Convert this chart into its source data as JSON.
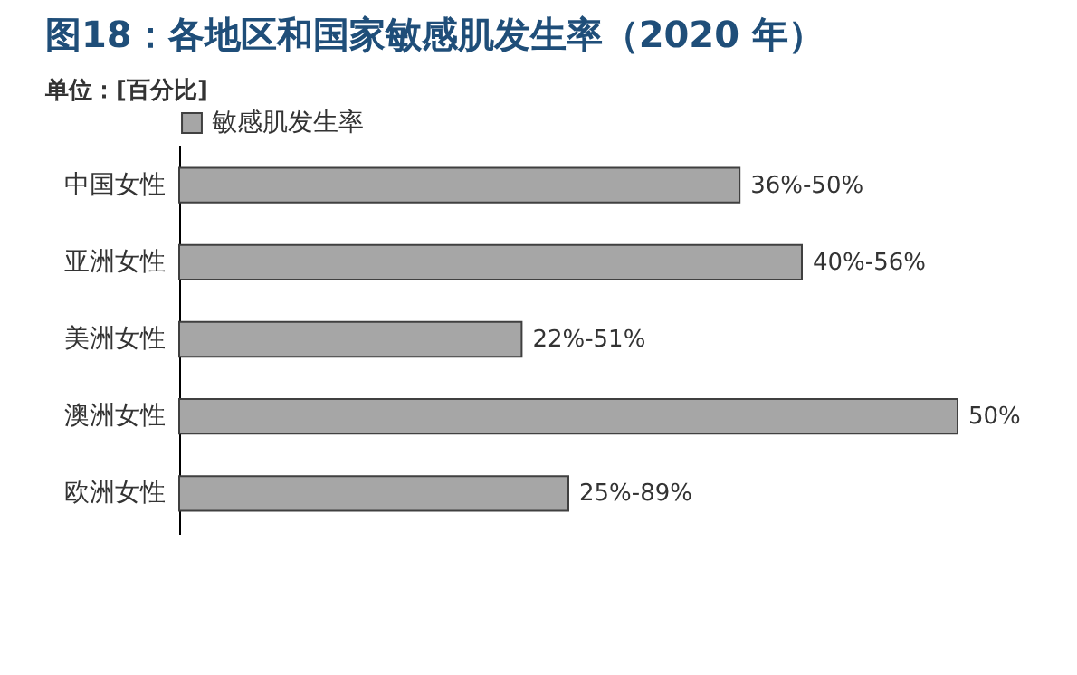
{
  "chart_data": {
    "type": "bar",
    "orientation": "horizontal",
    "title": "图18：各地区和国家敏感肌发生率（2020 年）",
    "annotations": [
      "单位：[百分比]"
    ],
    "categories": [
      "中国女性",
      "亚洲女性",
      "美洲女性",
      "澳洲女性",
      "欧洲女性"
    ],
    "series": [
      {
        "name": "敏感肌发生率",
        "color": "#a6a6a6",
        "values": [
          36,
          40,
          22,
          50,
          25
        ],
        "value_labels": [
          "36%-50%",
          "40%-56%",
          "22%-51%",
          "50%",
          "25%-89%"
        ]
      }
    ],
    "legend": "top"
  }
}
